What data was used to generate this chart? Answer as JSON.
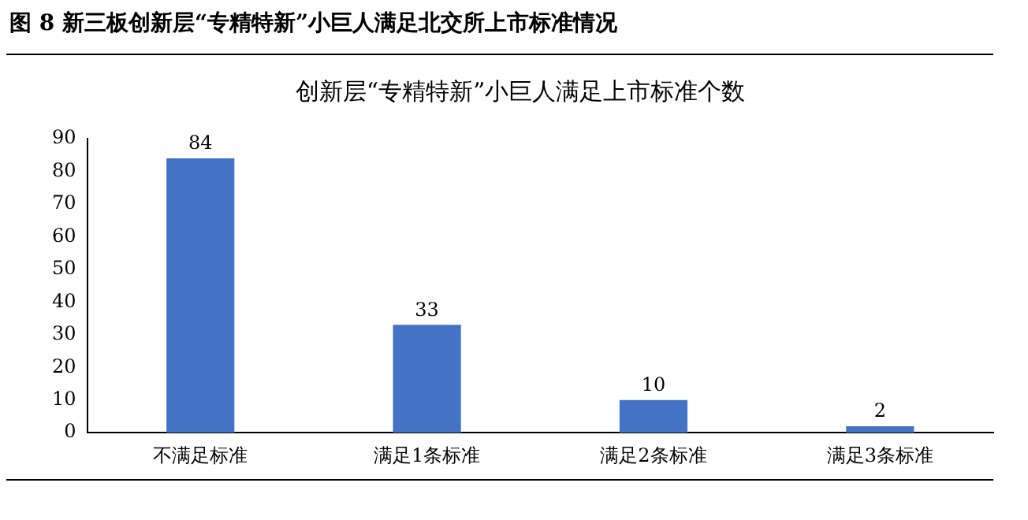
{
  "chart_data": {
    "type": "bar",
    "title": "图 8 新三板创新层“专精特新”小巨人满足北交所上市标准情况",
    "subtitle": "创新层“专精特新”小巨人满足上市标准个数",
    "categories": [
      "不满足标准",
      "满足1条标准",
      "满足2条标准",
      "满足3条标准"
    ],
    "values": [
      84,
      33,
      10,
      2
    ],
    "color": "#4472c4",
    "ylim": [
      0,
      90
    ],
    "yticks": [
      0,
      10,
      20,
      30,
      40,
      50,
      60,
      70,
      80,
      90
    ],
    "grid": false,
    "legend": false,
    "data_labels": true
  }
}
